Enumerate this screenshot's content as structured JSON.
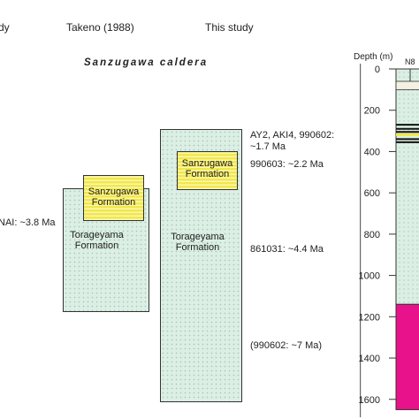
{
  "columns": {
    "left_partial": "dy",
    "takeno": "Takeno (1988)",
    "this_study": "This study"
  },
  "caldera_title": "Sanzugawa caldera",
  "left_annotation": "NAI: ~3.8 Ma",
  "takeno_column": {
    "sanzugawa_formation": "Sanzugawa Formation",
    "torageyama_formation": "Torageyama Formation"
  },
  "this_study_column": {
    "sanzugawa_formation": "Sanzugawa Formation",
    "torageyama_formation": "Torageyama Formation"
  },
  "ages": {
    "age1_line1": "AY2, AKI4, 990602:",
    "age1_line2": "~1.7 Ma",
    "age2": "990603: ~2.2 Ma",
    "age3": "861031: ~4.4 Ma",
    "age4": "(990602: ~7 Ma)"
  },
  "depth_log": {
    "axis_label": "Depth (m)",
    "column_label": "N8",
    "ticks": [
      "0",
      "200",
      "400",
      "600",
      "800",
      "1000",
      "1200",
      "1400",
      "1600"
    ],
    "tick_values": [
      0,
      200,
      400,
      600,
      800,
      1000,
      1200,
      1400,
      1600
    ],
    "max_depth": 1650,
    "green_color": "#dcefe5",
    "magenta_color": "#e8128a",
    "magenta_top_depth": 1140,
    "cream_band": [
      60,
      100
    ],
    "thin_lines": [
      270,
      290,
      305,
      340,
      355
    ]
  }
}
